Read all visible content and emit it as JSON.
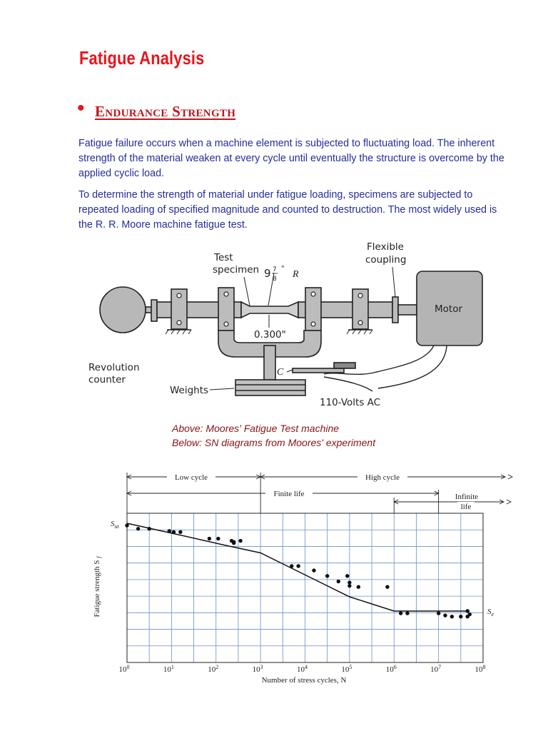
{
  "title": "Fatigue Analysis",
  "bullet": "•",
  "heading": "Endurance Strength",
  "paragraph1": "Fatigue failure occurs when a machine element is subjected to fluctuating load. The inherent strength of the material weaken at every cycle until eventually the structure is overcome by the applied cyclic load.",
  "paragraph2": "To determine the strength of material under fatigue loading, specimens are subjected to repeated loading of specified magnitude and counted to destruction. The most widely used is the R. R. Moore machine fatigue test.",
  "machine": {
    "test_specimen_line1": "Test",
    "test_specimen_line2": "specimen",
    "radius_whole": "9",
    "radius_num": "7",
    "radius_den": "8",
    "radius_inch": "\"",
    "radius_R": "R",
    "flexible_line1": "Flexible",
    "flexible_line2": "coupling",
    "motor": "Motor",
    "diameter": "0.300\"",
    "revolution_line1": "Revolution",
    "revolution_line2": "counter",
    "weights": "Weights",
    "c_label": "C",
    "volts": "110-Volts AC"
  },
  "caption1": "Above: Moores' Fatigue Test machine",
  "caption2": "Below: SN diagrams from Moores' experiment",
  "chart_data": {
    "type": "line",
    "xlabel": "Number of stress cycles, N",
    "ylabel": "Fatigue strength S",
    "ylabel_sub": "f",
    "x_scale": "log",
    "xlim_exponent": [
      0,
      8
    ],
    "x_tick_base": "10",
    "x_tick_exponents": [
      "0",
      "1",
      "2",
      "3",
      "4",
      "5",
      "6",
      "7",
      "8"
    ],
    "y_ticks": [
      "S",
      "S"
    ],
    "y_tick_subs": [
      "ut",
      "e"
    ],
    "regions": [
      {
        "label": "Low cycle",
        "from_exp": 0,
        "to_exp": 3
      },
      {
        "label": "High cycle",
        "from_exp": 3,
        "to_exp": 8
      },
      {
        "label": "Finite life",
        "from_exp": 0,
        "to_exp": 7
      },
      {
        "label_line1": "Infinite",
        "label_line2": "life",
        "from_exp": 6,
        "to_exp": 8
      }
    ],
    "curve_log_x": [
      0,
      1,
      2.2,
      3,
      4,
      5,
      6,
      7.7
    ],
    "curve_rel_y": [
      1.0,
      0.91,
      0.8,
      0.73,
      0.53,
      0.33,
      0.2,
      0.2
    ],
    "points_log_x": [
      0.0,
      0.25,
      0.5,
      0.95,
      1.05,
      1.2,
      1.85,
      2.05,
      2.35,
      2.4,
      2.4,
      2.55,
      3.7,
      3.85,
      4.2,
      4.5,
      4.75,
      4.95,
      5.0,
      5.0,
      5.2,
      5.85,
      6.15,
      6.3,
      7.0,
      7.15,
      7.3,
      7.5,
      7.65,
      7.65,
      7.7
    ],
    "points_rel_y": [
      0.98,
      0.95,
      0.95,
      0.93,
      0.92,
      0.92,
      0.86,
      0.86,
      0.84,
      0.83,
      0.82,
      0.84,
      0.61,
      0.61,
      0.57,
      0.52,
      0.47,
      0.52,
      0.46,
      0.43,
      0.42,
      0.42,
      0.18,
      0.18,
      0.18,
      0.16,
      0.15,
      0.15,
      0.15,
      0.2,
      0.17
    ]
  }
}
